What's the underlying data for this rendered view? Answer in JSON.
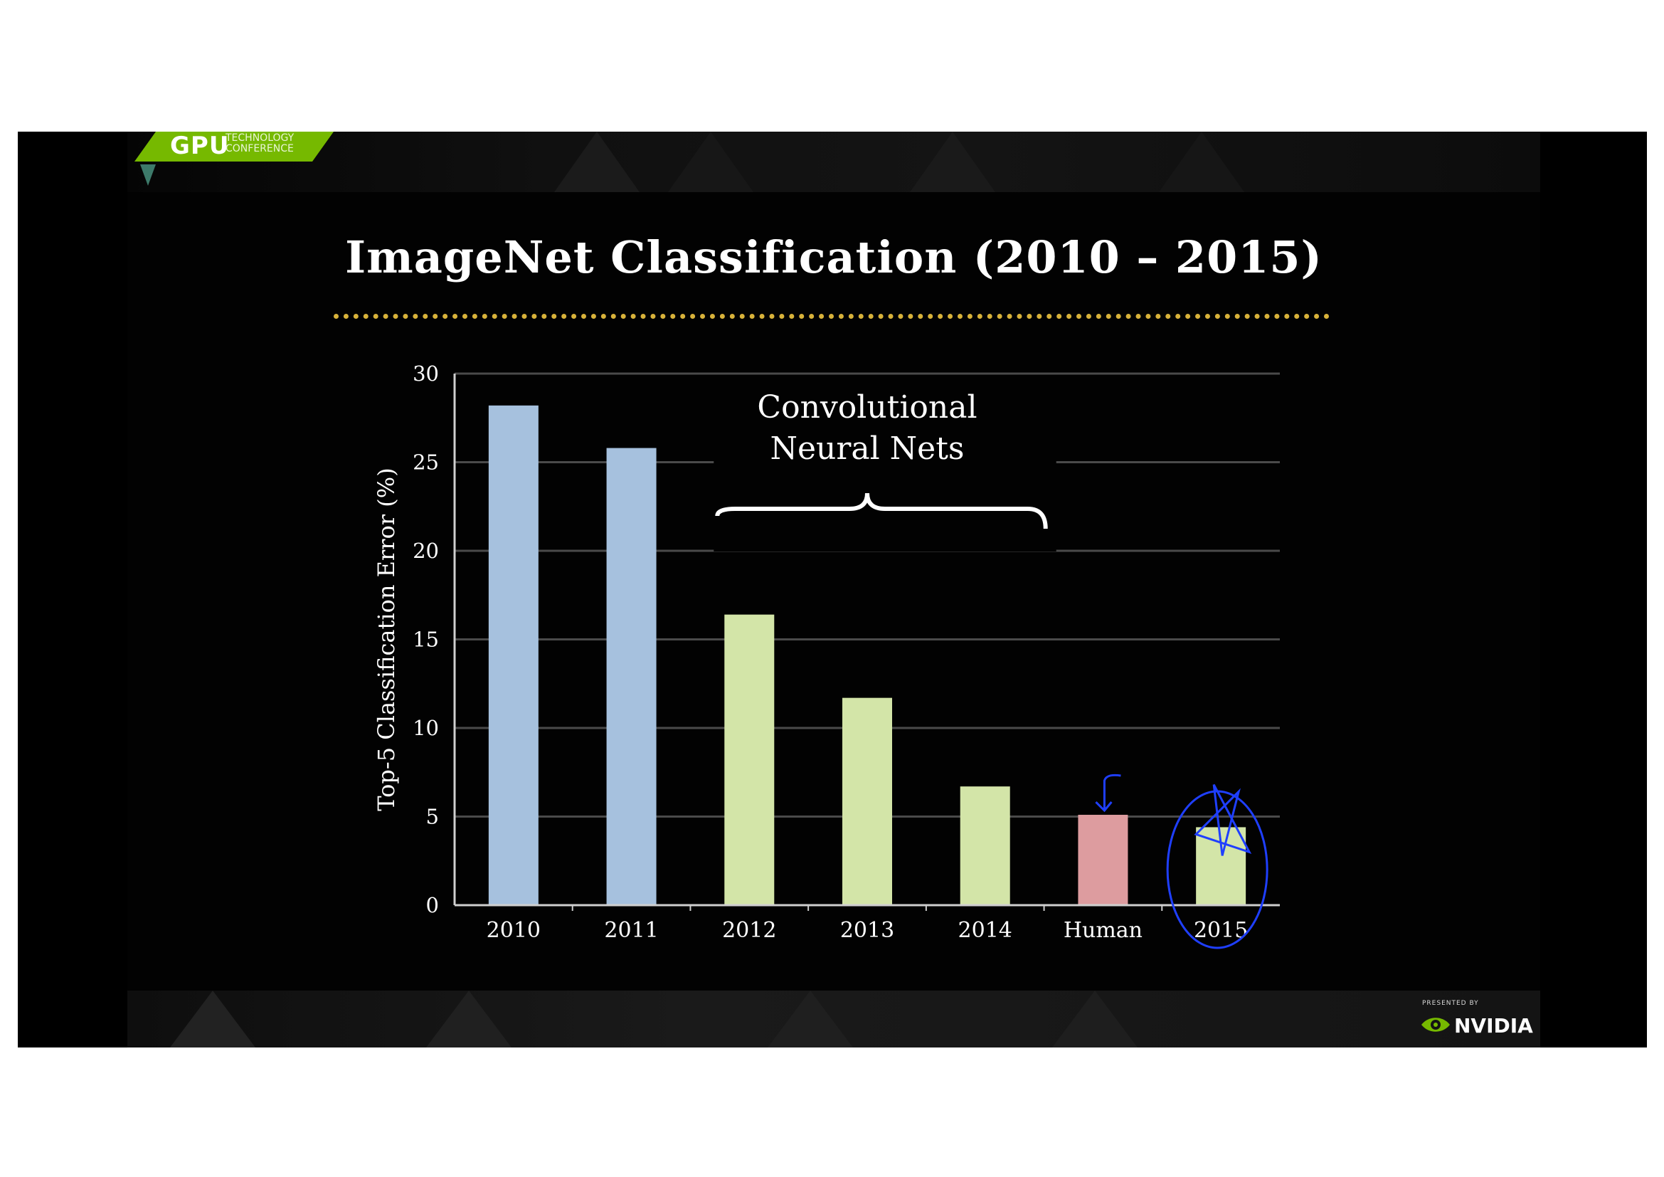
{
  "header": {
    "logo_main": "GPU",
    "logo_line1": "TECHNOLOGY",
    "logo_line2": "CONFERENCE",
    "logo_color": "#76b900"
  },
  "footer": {
    "presented_by": "PRESENTED BY",
    "brand": "NVIDIA",
    "brand_color": "#76b900"
  },
  "colors": {
    "bar_blue": "#a6c1de",
    "bar_green": "#d3e5a8",
    "bar_red": "#dd9c9f",
    "title_rule": "#d8b23a",
    "ink_annotation": "#1f3fff"
  },
  "chart_data": {
    "type": "bar",
    "title": "ImageNet Classification (2010 – 2015)",
    "ylabel": "Top-5 Classification Error (%)",
    "xlabel": "",
    "ylim": [
      0,
      30
    ],
    "yticks": [
      "0",
      "5",
      "10",
      "15",
      "20",
      "25",
      "30"
    ],
    "grid": true,
    "categories": [
      "2010",
      "2011",
      "2012",
      "2013",
      "2014",
      "Human",
      "2015"
    ],
    "values": [
      28.2,
      25.8,
      16.4,
      11.7,
      6.7,
      5.1,
      4.4
    ],
    "bar_color_keys": [
      "bar_blue",
      "bar_blue",
      "bar_green",
      "bar_green",
      "bar_green",
      "bar_red",
      "bar_green"
    ],
    "annotation": {
      "line1": "Convolutional",
      "line2": "Neural Nets",
      "spans_categories": [
        "2012",
        "2013",
        "2014"
      ]
    },
    "ink_marks": {
      "arrow_target": "Human",
      "circle_target": "2015",
      "star_target": "2015"
    }
  }
}
